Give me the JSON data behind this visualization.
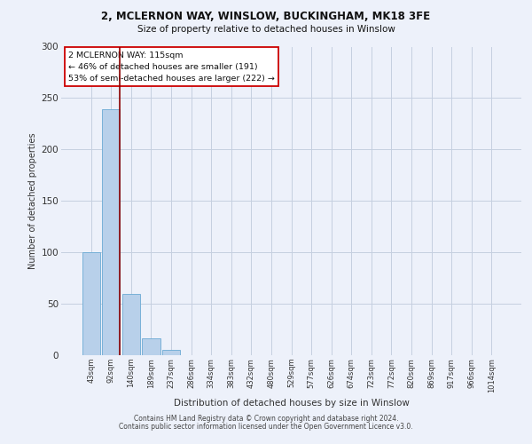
{
  "title_line1": "2, MCLERNON WAY, WINSLOW, BUCKINGHAM, MK18 3FE",
  "title_line2": "Size of property relative to detached houses in Winslow",
  "xlabel": "Distribution of detached houses by size in Winslow",
  "ylabel": "Number of detached properties",
  "footer_line1": "Contains HM Land Registry data © Crown copyright and database right 2024.",
  "footer_line2": "Contains public sector information licensed under the Open Government Licence v3.0.",
  "annotation_line1": "2 MCLERNON WAY: 115sqm",
  "annotation_line2": "← 46% of detached houses are smaller (191)",
  "annotation_line3": "53% of semi-detached houses are larger (222) →",
  "categories": [
    "43sqm",
    "92sqm",
    "140sqm",
    "189sqm",
    "237sqm",
    "286sqm",
    "334sqm",
    "383sqm",
    "432sqm",
    "480sqm",
    "529sqm",
    "577sqm",
    "626sqm",
    "674sqm",
    "723sqm",
    "772sqm",
    "820sqm",
    "869sqm",
    "917sqm",
    "966sqm",
    "1014sqm"
  ],
  "values": [
    100,
    239,
    60,
    16,
    5,
    0,
    0,
    0,
    0,
    0,
    0,
    0,
    0,
    0,
    0,
    0,
    0,
    0,
    0,
    0,
    0
  ],
  "bar_color": "#b8d0ea",
  "bar_edge_color": "#6aaad4",
  "redline_x": 1.42,
  "redline_color": "#8b0000",
  "background_color": "#edf1fa",
  "grid_color": "#c5cfe0",
  "annotation_box_color": "#ffffff",
  "annotation_box_edge": "#cc0000",
  "ylim": [
    0,
    300
  ],
  "yticks": [
    0,
    50,
    100,
    150,
    200,
    250,
    300
  ]
}
